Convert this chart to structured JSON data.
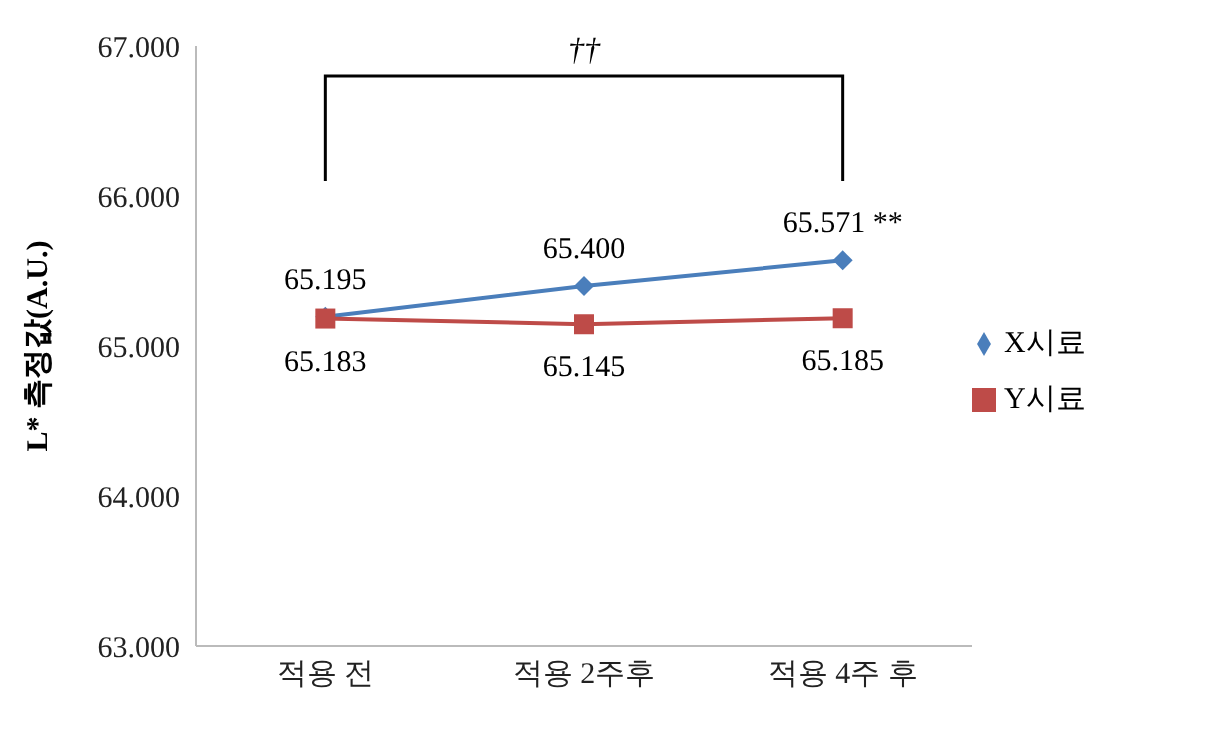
{
  "chart_data": {
    "type": "line",
    "ylabel": "L* 측정값(A.U.)",
    "categories": [
      "적용 전",
      "적용 2주후",
      "적용 4주 후"
    ],
    "series": [
      {
        "name": "X시료",
        "color": "#4a7ebb",
        "values": [
          65.195,
          65.4,
          65.571
        ],
        "value_labels": [
          "65.195",
          "65.400",
          "65.571 **"
        ],
        "marker": "diamond"
      },
      {
        "name": "Y시료",
        "color": "#be4b48",
        "values": [
          65.183,
          65.145,
          65.185
        ],
        "value_labels": [
          "65.183",
          "65.145",
          "65.185"
        ],
        "marker": "square"
      }
    ],
    "ylim": [
      63,
      67
    ],
    "yticks": [
      {
        "value": 63,
        "label": "63.000"
      },
      {
        "value": 64,
        "label": "64.000"
      },
      {
        "value": 65,
        "label": "65.000"
      },
      {
        "value": 66,
        "label": "66.000"
      },
      {
        "value": 67,
        "label": "67.000"
      }
    ],
    "grid": false,
    "legend": "right",
    "annotations": [
      "††"
    ]
  }
}
